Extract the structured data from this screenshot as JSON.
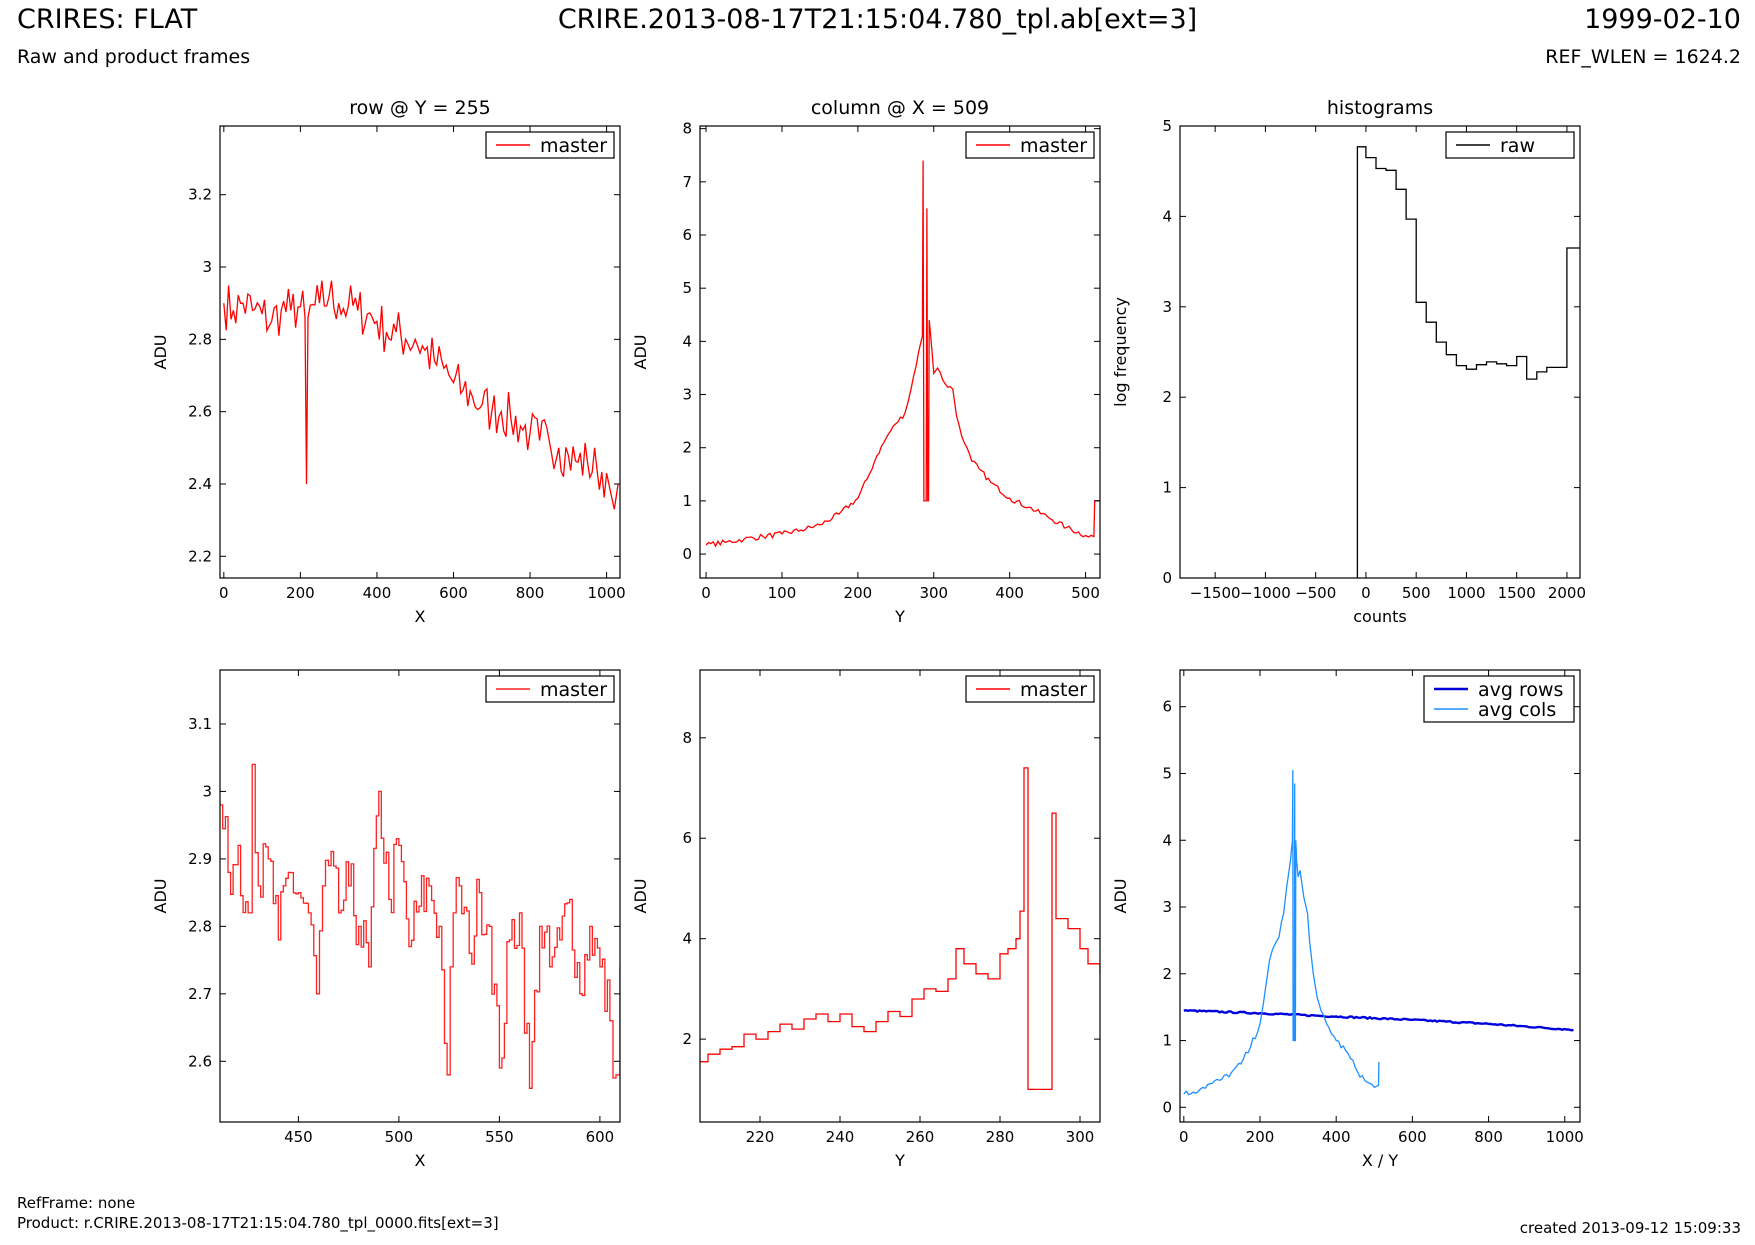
{
  "header": {
    "title": "CRIRES: FLAT",
    "subtitle": "Raw and product frames",
    "filename": "CRIRE.2013-08-17T21:15:04.780_tpl.ab[ext=3]",
    "date": "1999-02-10",
    "ref_wlen": "REF_WLEN = 1624.2"
  },
  "footer": {
    "ref_frame": "RefFrame: none",
    "product": "Product: r.CRIRE.2013-08-17T21:15:04.780_tpl_0000.fits[ext=3]",
    "created": "created 2013-09-12 15:09:33"
  },
  "colors": {
    "master": "#ff0000",
    "raw": "#000000",
    "avg_rows": "#0000dd",
    "avg_cols": "#1e90ff"
  },
  "chart_data": [
    {
      "id": "row",
      "type": "line",
      "title": "row @ Y = 255",
      "xlabel": "X",
      "ylabel": "ADU",
      "xlim": [
        -10,
        1035
      ],
      "ylim": [
        2.14,
        3.39
      ],
      "xticks": [
        0,
        200,
        400,
        600,
        800,
        1000
      ],
      "yticks": [
        2.2,
        2.4,
        2.6,
        2.8,
        3.0,
        3.2
      ],
      "legend": {
        "position": "top-right",
        "entries": [
          "master"
        ]
      },
      "series": [
        {
          "name": "master",
          "color": "#ff0000",
          "x": [
            0,
            25,
            50,
            75,
            100,
            125,
            150,
            175,
            200,
            212,
            216,
            220,
            250,
            275,
            300,
            325,
            350,
            375,
            400,
            425,
            450,
            475,
            500,
            525,
            550,
            575,
            600,
            625,
            650,
            675,
            700,
            725,
            750,
            775,
            800,
            825,
            850,
            875,
            900,
            925,
            950,
            975,
            1000,
            1010,
            1020,
            1030
          ],
          "y": [
            2.9,
            2.88,
            2.9,
            2.88,
            2.87,
            2.85,
            2.88,
            2.88,
            2.89,
            2.86,
            2.4,
            2.86,
            2.9,
            2.92,
            2.9,
            2.89,
            2.88,
            2.87,
            2.85,
            2.82,
            2.82,
            2.8,
            2.8,
            2.77,
            2.74,
            2.72,
            2.68,
            2.66,
            2.64,
            2.62,
            2.6,
            2.6,
            2.58,
            2.56,
            2.54,
            2.52,
            2.52,
            2.5,
            2.48,
            2.46,
            2.46,
            2.44,
            2.43,
            2.38,
            2.33,
            2.4
          ],
          "noise": 0.07
        }
      ]
    },
    {
      "id": "column",
      "type": "line",
      "title": "column @ X = 509",
      "xlabel": "Y",
      "ylabel": "ADU",
      "xlim": [
        -8,
        519
      ],
      "ylim": [
        -0.45,
        8.05
      ],
      "xticks": [
        0,
        100,
        200,
        300,
        400,
        500
      ],
      "yticks": [
        0,
        1,
        2,
        3,
        4,
        5,
        6,
        7,
        8
      ],
      "legend": {
        "position": "top-right",
        "entries": [
          "master"
        ]
      },
      "series": [
        {
          "name": "master",
          "color": "#ff0000",
          "x": [
            0,
            25,
            50,
            75,
            100,
            125,
            150,
            175,
            200,
            215,
            225,
            240,
            250,
            262,
            270,
            280,
            285,
            286,
            287,
            290,
            291,
            292,
            293,
            294,
            296,
            300,
            305,
            315,
            325,
            330,
            340,
            350,
            360,
            375,
            400,
            425,
            450,
            475,
            500,
            511,
            512,
            519
          ],
          "y": [
            0.17,
            0.22,
            0.28,
            0.33,
            0.38,
            0.45,
            0.55,
            0.75,
            1.05,
            1.5,
            1.85,
            2.25,
            2.45,
            2.65,
            3.1,
            3.8,
            4.1,
            7.4,
            1.0,
            1.0,
            6.5,
            1.0,
            1.0,
            4.4,
            4.1,
            3.4,
            3.5,
            3.2,
            3.1,
            2.6,
            2.1,
            1.75,
            1.6,
            1.35,
            1.05,
            0.88,
            0.7,
            0.5,
            0.35,
            0.33,
            1.0,
            1.0
          ],
          "noise": 0.05
        }
      ]
    },
    {
      "id": "hist",
      "type": "line",
      "title": "histograms",
      "xlabel": "counts",
      "ylabel": "log frequency",
      "xlim": [
        -1850,
        2130
      ],
      "ylim": [
        0,
        5
      ],
      "xticks": [
        -1500,
        -1000,
        -500,
        0,
        500,
        1000,
        1500,
        2000
      ],
      "yticks": [
        0,
        1,
        2,
        3,
        4,
        5
      ],
      "legend": {
        "position": "top-right",
        "entries": [
          "raw"
        ]
      },
      "series": [
        {
          "name": "raw",
          "color": "#000000",
          "step": true,
          "x": [
            -85,
            -85,
            0,
            0,
            100,
            100,
            200,
            200,
            300,
            300,
            400,
            400,
            500,
            500,
            600,
            600,
            700,
            700,
            800,
            800,
            900,
            900,
            1000,
            1000,
            1100,
            1100,
            1200,
            1200,
            1300,
            1300,
            1400,
            1400,
            1500,
            1500,
            1600,
            1600,
            1700,
            1700,
            1800,
            1800,
            2000,
            2000,
            2130
          ],
          "y": [
            0,
            4.77,
            4.77,
            4.65,
            4.65,
            4.53,
            4.53,
            4.51,
            4.51,
            4.3,
            4.3,
            3.97,
            3.97,
            3.05,
            3.05,
            2.83,
            2.83,
            2.61,
            2.61,
            2.47,
            2.47,
            2.35,
            2.35,
            2.31,
            2.31,
            2.36,
            2.36,
            2.39,
            2.39,
            2.37,
            2.37,
            2.35,
            2.35,
            2.45,
            2.45,
            2.2,
            2.2,
            2.28,
            2.28,
            2.33,
            2.33,
            3.65,
            3.65
          ],
          "noise": 0
        }
      ]
    },
    {
      "id": "row-zoom",
      "type": "line",
      "title": "",
      "xlabel": "X",
      "ylabel": "ADU",
      "xlim": [
        411,
        610
      ],
      "ylim": [
        2.51,
        3.18
      ],
      "xticks": [
        450,
        500,
        550,
        600
      ],
      "yticks": [
        2.6,
        2.7,
        2.8,
        2.9,
        3.0,
        3.1
      ],
      "legend": {
        "position": "top-right",
        "entries": [
          "master"
        ]
      },
      "series": [
        {
          "name": "master",
          "color": "#ff2020",
          "step": true,
          "x": [
            411,
            415,
            420,
            425,
            427,
            430,
            435,
            440,
            445,
            450,
            455,
            459,
            462,
            465,
            470,
            475,
            480,
            485,
            490,
            495,
            500,
            505,
            510,
            515,
            520,
            524,
            527,
            530,
            535,
            540,
            545,
            550,
            555,
            560,
            565,
            570,
            575,
            580,
            585,
            590,
            595,
            600,
            605,
            608,
            610
          ],
          "y": [
            2.98,
            2.88,
            2.92,
            2.82,
            3.04,
            2.86,
            2.9,
            2.78,
            2.88,
            2.85,
            2.82,
            2.7,
            2.86,
            2.89,
            2.82,
            2.86,
            2.8,
            2.74,
            3.0,
            2.84,
            2.92,
            2.77,
            2.83,
            2.86,
            2.8,
            2.58,
            2.82,
            2.86,
            2.76,
            2.85,
            2.8,
            2.59,
            2.78,
            2.82,
            2.56,
            2.8,
            2.74,
            2.78,
            2.84,
            2.7,
            2.8,
            2.74,
            2.66,
            2.58,
            2.74
          ],
          "noise": 0.05
        }
      ]
    },
    {
      "id": "column-zoom",
      "type": "line",
      "title": "",
      "xlabel": "Y",
      "ylabel": "ADU",
      "xlim": [
        205,
        305
      ],
      "ylim": [
        0.35,
        9.35
      ],
      "xticks": [
        220,
        240,
        260,
        280,
        300
      ],
      "yticks": [
        2,
        4,
        6,
        8
      ],
      "legend": {
        "position": "top-right",
        "entries": [
          "master"
        ]
      },
      "series": [
        {
          "name": "master",
          "color": "#ff0000",
          "step": true,
          "x": [
            205,
            207,
            210,
            213,
            216,
            219,
            222,
            225,
            228,
            231,
            234,
            237,
            240,
            243,
            246,
            249,
            252,
            255,
            258,
            261,
            264,
            267,
            269,
            271,
            274,
            277,
            280,
            282,
            284,
            285,
            286,
            287,
            288,
            291,
            293,
            294,
            297,
            300,
            302,
            305
          ],
          "y": [
            1.55,
            1.7,
            1.8,
            1.85,
            2.1,
            2.0,
            2.15,
            2.3,
            2.2,
            2.4,
            2.5,
            2.35,
            2.5,
            2.25,
            2.15,
            2.35,
            2.55,
            2.45,
            2.8,
            3.0,
            2.95,
            3.2,
            3.8,
            3.5,
            3.3,
            3.2,
            3.7,
            3.8,
            4.0,
            4.55,
            7.4,
            1.0,
            1.0,
            1.0,
            6.5,
            4.4,
            4.2,
            3.8,
            3.5,
            3.3
          ],
          "noise": 0
        }
      ]
    },
    {
      "id": "avg",
      "type": "line",
      "title": "",
      "xlabel": "X / Y",
      "ylabel": "ADU",
      "xlim": [
        -10,
        1040
      ],
      "ylim": [
        -0.22,
        6.55
      ],
      "xticks": [
        0,
        200,
        400,
        600,
        800,
        1000
      ],
      "yticks": [
        0,
        1,
        2,
        3,
        4,
        5,
        6
      ],
      "legend": {
        "position": "top-right",
        "entries": [
          "avg rows",
          "avg cols"
        ]
      },
      "series": [
        {
          "name": "avg rows",
          "color": "#0000dd",
          "lw": 2.4,
          "x": [
            0,
            200,
            400,
            600,
            800,
            1023
          ],
          "y": [
            1.45,
            1.41,
            1.36,
            1.31,
            1.25,
            1.16
          ],
          "noise": 0.012
        },
        {
          "name": "avg cols",
          "color": "#1e90ff",
          "x": [
            0,
            25,
            50,
            75,
            100,
            125,
            150,
            175,
            200,
            215,
            225,
            240,
            250,
            262,
            270,
            280,
            285,
            286,
            287,
            290,
            291,
            292,
            293,
            294,
            296,
            300,
            305,
            315,
            325,
            330,
            340,
            350,
            360,
            375,
            400,
            425,
            450,
            475,
            500,
            511,
            512
          ],
          "y": [
            0.2,
            0.23,
            0.3,
            0.36,
            0.42,
            0.52,
            0.65,
            0.9,
            1.25,
            1.8,
            2.2,
            2.45,
            2.55,
            2.9,
            3.3,
            3.7,
            4.0,
            5.05,
            1.0,
            1.0,
            4.85,
            1.0,
            1.0,
            4.0,
            3.7,
            3.45,
            3.55,
            3.15,
            2.9,
            2.5,
            2.0,
            1.65,
            1.45,
            1.25,
            1.0,
            0.85,
            0.6,
            0.4,
            0.3,
            0.33,
            0.68
          ],
          "noise": 0.05
        }
      ]
    }
  ]
}
